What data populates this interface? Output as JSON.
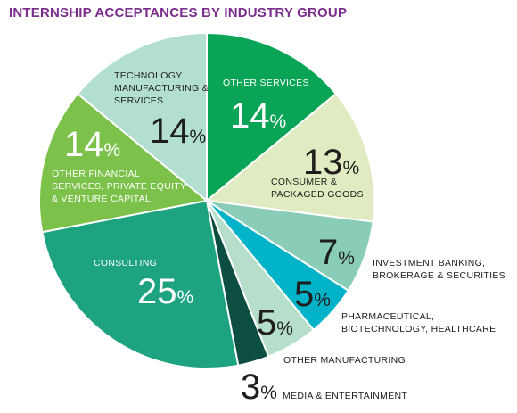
{
  "title": "INTERNSHIP ACCEPTANCES BY INDUSTRY GROUP",
  "chart_data": {
    "type": "pie",
    "title": "INTERNSHIP ACCEPTANCES BY INDUSTRY GROUP",
    "unit": "%",
    "slices": [
      {
        "label": "OTHER SERVICES",
        "value": 14,
        "color": "#0aa456"
      },
      {
        "label": "CONSUMER & PACKAGED GOODS",
        "value": 13,
        "color": "#e1ebc1"
      },
      {
        "label": "INVESTMENT BANKING, BROKERAGE & SECURITIES",
        "value": 7,
        "color": "#89cdb8"
      },
      {
        "label": "PHARMACEUTICAL, BIOTECHNOLOGY, HEALTHCARE",
        "value": 5,
        "color": "#00b3c8"
      },
      {
        "label": "OTHER MANUFACTURING",
        "value": 5,
        "color": "#b5dfcb"
      },
      {
        "label": "MEDIA & ENTERTAINMENT",
        "value": 3,
        "color": "#0c4e3f"
      },
      {
        "label": "CONSULTING",
        "value": 25,
        "color": "#1ea380"
      },
      {
        "label": "OTHER FINANCIAL SERVICES, PRIVATE EQUITY & VENTURE CAPITAL",
        "value": 14,
        "color": "#7cc24a"
      },
      {
        "label": "TECHNOLOGY MANUFACTURING & SERVICES",
        "value": 14,
        "color": "#b3ded2"
      }
    ],
    "labels": [
      {
        "lines": [
          "OTHER SERVICES"
        ],
        "pct": "14"
      },
      {
        "lines": [
          "CONSUMER &",
          "PACKAGED GOODS"
        ],
        "pct": "13"
      },
      {
        "lines": [
          "INVESTMENT BANKING,",
          "BROKERAGE & SECURITIES"
        ],
        "pct": "7"
      },
      {
        "lines": [
          "PHARMACEUTICAL,",
          "BIOTECHNOLOGY, HEALTHCARE"
        ],
        "pct": "5"
      },
      {
        "lines": [
          "OTHER MANUFACTURING"
        ],
        "pct": "5"
      },
      {
        "lines": [
          "MEDIA & ENTERTAINMENT"
        ],
        "pct": "3"
      },
      {
        "lines": [
          "CONSULTING"
        ],
        "pct": "25"
      },
      {
        "lines": [
          "OTHER FINANCIAL",
          "SERVICES, PRIVATE EQUITY",
          "& VENTURE CAPITAL"
        ],
        "pct": "14"
      },
      {
        "lines": [
          "TECHNOLOGY",
          "MANUFACTURING &",
          "SERVICES"
        ],
        "pct": "14"
      }
    ],
    "pct_symbol": "%"
  }
}
